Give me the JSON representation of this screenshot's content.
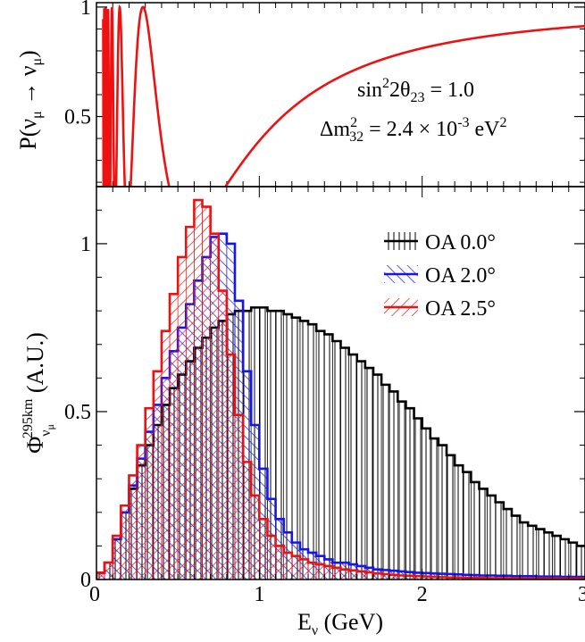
{
  "chart_data": [
    {
      "type": "line",
      "panel": "top",
      "ylabel_base": "P(ν",
      "ylabel_sub1": "μ",
      "ylabel_arrow": " → ν",
      "ylabel_sub2": "μ",
      "ylabel_close": ")",
      "xlim": [
        0,
        3
      ],
      "ylim": [
        0.18,
        1.02
      ],
      "yticks": [
        "0.5",
        "1"
      ],
      "ytick_values": [
        0.5,
        1.0
      ],
      "annotations": {
        "sin_pre": "sin",
        "sin_sup": "2",
        "sin_mid": "2θ",
        "sin_sub": "23",
        "sin_post": " = 1.0",
        "dm_pre": "Δm",
        "dm_sup": "2",
        "dm_sub": "32",
        "dm_mid": " = 2.4 × 10",
        "dm_exp": "-3",
        "dm_post": " eV",
        "dm_sup2": "2"
      },
      "series": [
        {
          "color": "#ee1111",
          "formula": "P = 1 - sin^2(2θ23)·sin^2(1.267·Δm²32·L/E), L = 295 km",
          "L_km": 295,
          "dm2_eV2": 0.0024,
          "sin2_2theta": 1.0
        }
      ]
    },
    {
      "type": "bar",
      "panel": "bottom",
      "xlabel_base": "E",
      "xlabel_sub": "ν",
      "xlabel_unit": " (GeV)",
      "ylabel_phi": "Φ",
      "ylabel_sub": "ν",
      "ylabel_subsub": "μ",
      "ylabel_sup": "295km",
      "ylabel_unit": " (A.U.)",
      "xlim": [
        0,
        3
      ],
      "ylim": [
        0,
        1.17
      ],
      "xticks": [
        "0",
        "1",
        "2",
        "3"
      ],
      "xtick_values": [
        0,
        1,
        2,
        3
      ],
      "yticks": [
        "0",
        "0.5",
        "1"
      ],
      "ytick_values": [
        0,
        0.5,
        1.0
      ],
      "bin_width": 0.05,
      "legend_position": "top-right",
      "series": [
        {
          "name": "OA 0.0°",
          "color": "#000000",
          "hatch": "vertical",
          "values": [
            0.02,
            0.05,
            0.12,
            0.2,
            0.27,
            0.34,
            0.4,
            0.46,
            0.52,
            0.57,
            0.61,
            0.65,
            0.69,
            0.72,
            0.75,
            0.77,
            0.79,
            0.8,
            0.8,
            0.81,
            0.81,
            0.8,
            0.8,
            0.79,
            0.78,
            0.77,
            0.76,
            0.74,
            0.73,
            0.71,
            0.69,
            0.67,
            0.65,
            0.63,
            0.61,
            0.58,
            0.56,
            0.53,
            0.51,
            0.48,
            0.45,
            0.42,
            0.4,
            0.37,
            0.34,
            0.32,
            0.29,
            0.27,
            0.25,
            0.23,
            0.21,
            0.19,
            0.17,
            0.16,
            0.15,
            0.14,
            0.13,
            0.12,
            0.11,
            0.1
          ]
        },
        {
          "name": "OA 2.0°",
          "color": "#1515ee",
          "hatch": "diagonal",
          "values": [
            0.02,
            0.05,
            0.12,
            0.2,
            0.28,
            0.36,
            0.44,
            0.52,
            0.6,
            0.68,
            0.75,
            0.82,
            0.89,
            0.96,
            1.02,
            1.03,
            1.0,
            0.83,
            0.62,
            0.46,
            0.33,
            0.24,
            0.18,
            0.14,
            0.11,
            0.09,
            0.08,
            0.07,
            0.06,
            0.05,
            0.05,
            0.045,
            0.04,
            0.035,
            0.03,
            0.028,
            0.026,
            0.024,
            0.022,
            0.02,
            0.019,
            0.018,
            0.017,
            0.016,
            0.015,
            0.014,
            0.013,
            0.012,
            0.012,
            0.011,
            0.011,
            0.01,
            0.01,
            0.01,
            0.009,
            0.009,
            0.009,
            0.008,
            0.008,
            0.008
          ]
        },
        {
          "name": "OA 2.5°",
          "color": "#ee1111",
          "hatch": "diagonal-reverse",
          "values": [
            0.02,
            0.05,
            0.13,
            0.22,
            0.31,
            0.4,
            0.51,
            0.62,
            0.74,
            0.85,
            0.96,
            1.05,
            1.13,
            1.11,
            1.03,
            0.86,
            0.67,
            0.49,
            0.35,
            0.25,
            0.18,
            0.13,
            0.1,
            0.08,
            0.07,
            0.06,
            0.05,
            0.045,
            0.04,
            0.035,
            0.03,
            0.027,
            0.024,
            0.021,
            0.018,
            0.016,
            0.014,
            0.012,
            0.011,
            0.01,
            0.009,
            0.008,
            0.007,
            0.006,
            0.006,
            0.005,
            0.005,
            0.005,
            0.004,
            0.004,
            0.004,
            0.004,
            0.003,
            0.003,
            0.003,
            0.003,
            0.003,
            0.003,
            0.003,
            0.003
          ]
        }
      ]
    }
  ]
}
